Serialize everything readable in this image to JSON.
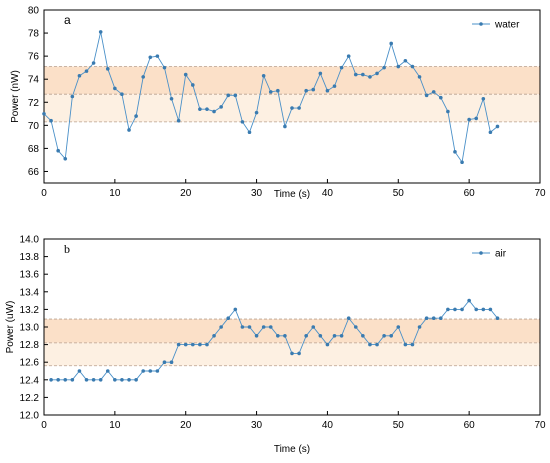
{
  "chart_data": [
    {
      "type": "line",
      "panel_label": "a",
      "xlabel": "Time (s)",
      "ylabel": "Power (nW)",
      "xlim": [
        0,
        70
      ],
      "ylim": [
        65,
        80
      ],
      "xticks": [
        0,
        10,
        20,
        30,
        40,
        50,
        60,
        70
      ],
      "yticks": [
        66,
        68,
        70,
        72,
        74,
        76,
        78,
        80
      ],
      "band": [
        70.3,
        75.1
      ],
      "band_mid": 72.7,
      "legend_position": "top-right",
      "series": [
        {
          "name": "water",
          "x": [
            0,
            1,
            2,
            3,
            4,
            5,
            6,
            7,
            8,
            9,
            10,
            11,
            12,
            13,
            14,
            15,
            16,
            17,
            18,
            19,
            20,
            21,
            22,
            23,
            24,
            25,
            26,
            27,
            28,
            29,
            30,
            31,
            32,
            33,
            34,
            35,
            36,
            37,
            38,
            39,
            40,
            41,
            42,
            43,
            44,
            45,
            46,
            47,
            48,
            49,
            50,
            51,
            52,
            53,
            54,
            55,
            56,
            57,
            58,
            59,
            60,
            61,
            62,
            63,
            64
          ],
          "y": [
            71.0,
            70.4,
            67.8,
            67.1,
            72.5,
            74.3,
            74.7,
            75.4,
            78.1,
            74.9,
            73.2,
            72.7,
            69.6,
            70.8,
            74.2,
            75.9,
            76.0,
            75.0,
            72.3,
            70.4,
            74.4,
            73.5,
            71.4,
            71.4,
            71.2,
            71.6,
            72.6,
            72.6,
            70.3,
            69.4,
            71.1,
            74.3,
            72.9,
            73.0,
            69.9,
            71.5,
            71.5,
            73.0,
            73.1,
            74.5,
            73.0,
            73.4,
            75.0,
            76.0,
            74.4,
            74.4,
            74.2,
            74.5,
            75.0,
            77.1,
            75.1,
            75.6,
            75.1,
            74.2,
            72.6,
            72.9,
            72.4,
            71.2,
            67.7,
            66.8,
            70.5,
            70.6,
            72.3,
            69.4,
            69.9
          ],
          "color": "#4a90c8"
        }
      ]
    },
    {
      "type": "line",
      "panel_label": "b",
      "xlabel": "Time (s)",
      "ylabel": "Power (uW)",
      "xlim": [
        0,
        70
      ],
      "ylim": [
        12.0,
        14.0
      ],
      "xticks": [
        0,
        10,
        20,
        30,
        40,
        50,
        60,
        70
      ],
      "yticks": [
        "12.0",
        "12.2",
        "12.4",
        "12.6",
        "12.8",
        "13.0",
        "13.2",
        "13.4",
        "13.6",
        "13.8",
        "14.0"
      ],
      "band": [
        12.56,
        13.09
      ],
      "band_mid": 12.82,
      "legend_position": "top-right",
      "series": [
        {
          "name": "air",
          "x": [
            1,
            2,
            3,
            4,
            5,
            6,
            7,
            8,
            9,
            10,
            11,
            12,
            13,
            14,
            15,
            16,
            17,
            18,
            19,
            20,
            21,
            22,
            23,
            24,
            25,
            26,
            27,
            28,
            29,
            30,
            31,
            32,
            33,
            34,
            35,
            36,
            37,
            38,
            39,
            40,
            41,
            42,
            43,
            44,
            45,
            46,
            47,
            48,
            49,
            50,
            51,
            52,
            53,
            54,
            55,
            56,
            57,
            58,
            59,
            60,
            61,
            62,
            63,
            64
          ],
          "y": [
            12.4,
            12.4,
            12.4,
            12.4,
            12.5,
            12.4,
            12.4,
            12.4,
            12.5,
            12.4,
            12.4,
            12.4,
            12.4,
            12.5,
            12.5,
            12.5,
            12.6,
            12.6,
            12.8,
            12.8,
            12.8,
            12.8,
            12.8,
            12.9,
            13.0,
            13.1,
            13.2,
            13.0,
            13.0,
            12.9,
            13.0,
            13.0,
            12.9,
            12.9,
            12.7,
            12.7,
            12.9,
            13.0,
            12.9,
            12.8,
            12.9,
            12.9,
            13.1,
            13.0,
            12.9,
            12.8,
            12.8,
            12.9,
            12.9,
            13.0,
            12.8,
            12.8,
            13.0,
            13.1,
            13.1,
            13.1,
            13.2,
            13.2,
            13.2,
            13.3,
            13.2,
            13.2,
            13.2,
            13.1
          ],
          "color": "#4a90c8"
        }
      ]
    }
  ],
  "colors": {
    "band_fill": "#fbe0c8",
    "band_fill_light": "#fdf0e2",
    "band_line": "#b9a18f",
    "series": "#4a90c8",
    "marker": "#3a7bb0"
  }
}
